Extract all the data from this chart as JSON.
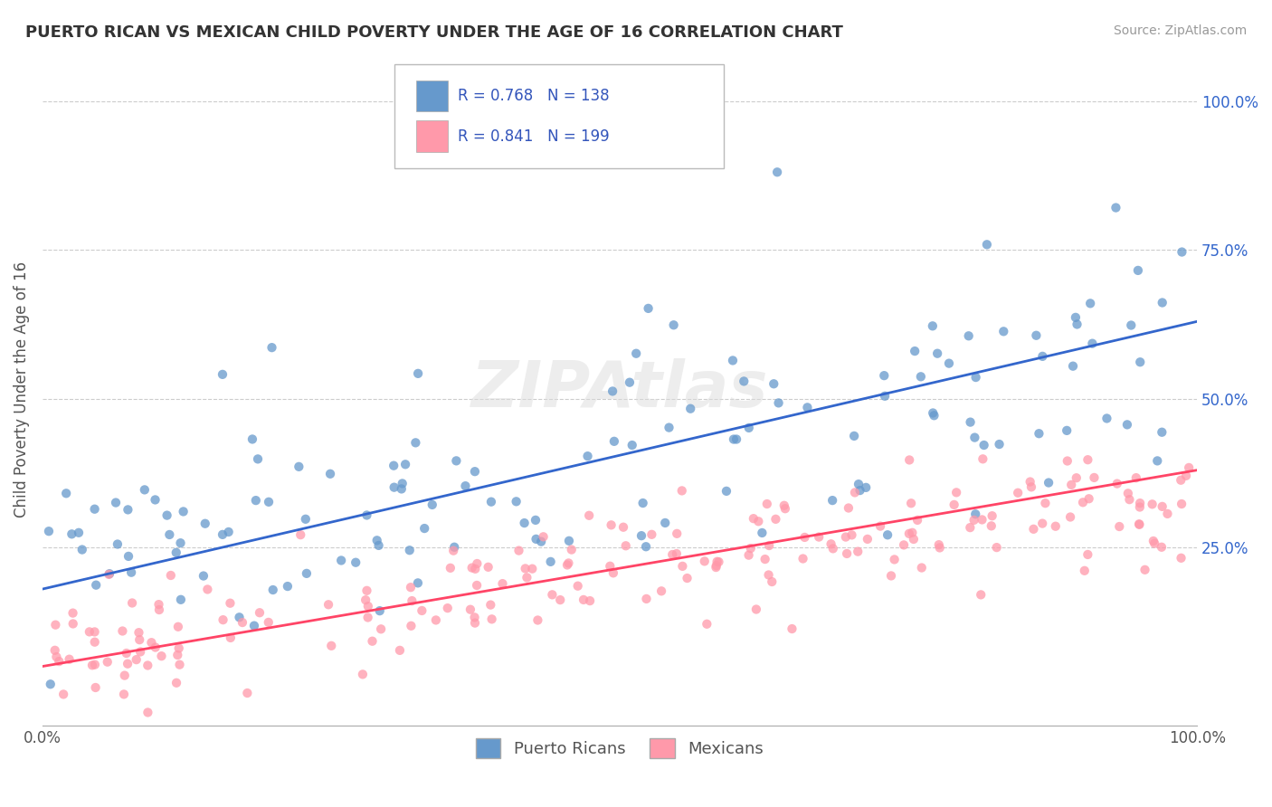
{
  "title": "PUERTO RICAN VS MEXICAN CHILD POVERTY UNDER THE AGE OF 16 CORRELATION CHART",
  "source": "Source: ZipAtlas.com",
  "xlabel": "",
  "ylabel": "Child Poverty Under the Age of 16",
  "xticklabels": [
    "0.0%",
    "100.0%"
  ],
  "yticklabels": [
    "25.0%",
    "50.0%",
    "75.0%",
    "100.0%"
  ],
  "legend_labels": [
    "Puerto Ricans",
    "Mexicans"
  ],
  "blue_R": 0.768,
  "blue_N": 138,
  "pink_R": 0.841,
  "pink_N": 199,
  "blue_color": "#6699CC",
  "pink_color": "#FF99AA",
  "blue_line_color": "#3366CC",
  "pink_line_color": "#FF4466",
  "watermark": "ZIPAtlas",
  "background_color": "#FFFFFF",
  "grid_color": "#CCCCCC",
  "title_color": "#333333",
  "source_color": "#999999",
  "legend_text_color": "#3355BB",
  "axis_label_color": "#555555"
}
